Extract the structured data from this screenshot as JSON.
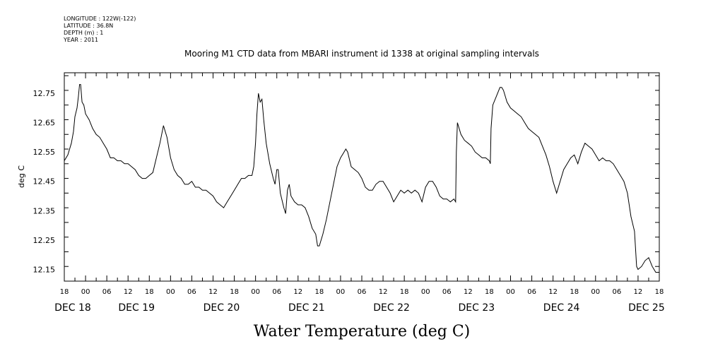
{
  "header_info": {
    "longitude": "LONGITUDE : 122W(-122)",
    "latitude": "LATITUDE : 36.8N",
    "depth": "DEPTH (m) : 1",
    "year": "YEAR : 2011"
  },
  "chart_data": {
    "type": "line",
    "title": "Mooring M1 CTD data from MBARI instrument id 1338 at original sampling intervals",
    "xlabel": "Water Temperature (deg C)",
    "ylabel": "deg C",
    "xlim_hours": [
      0,
      168
    ],
    "ylim": [
      12.11,
      12.82
    ],
    "yticks": [
      12.15,
      12.25,
      12.35,
      12.45,
      12.55,
      12.65,
      12.75
    ],
    "ytick_labels": [
      "12.15",
      "12.25",
      "12.35",
      "12.45",
      "12.55",
      "12.65",
      "12.75"
    ],
    "hour_labels": [
      "18",
      "00",
      "06",
      "12",
      "18",
      "00",
      "06",
      "12",
      "18",
      "00",
      "06",
      "12",
      "18",
      "00",
      "06",
      "12",
      "18",
      "00",
      "06",
      "12",
      "18",
      "00",
      "06",
      "12",
      "18",
      "00",
      "06",
      "12",
      "18"
    ],
    "date_labels": [
      {
        "label": "DEC 18",
        "hour": 0
      },
      {
        "label": "DEC 19",
        "hour": 18
      },
      {
        "label": "DEC 20",
        "hour": 42
      },
      {
        "label": "DEC 21",
        "hour": 66
      },
      {
        "label": "DEC 22",
        "hour": 90
      },
      {
        "label": "DEC 23",
        "hour": 114
      },
      {
        "label": "DEC 24",
        "hour": 138
      },
      {
        "label": "DEC 25",
        "hour": 162
      }
    ],
    "grid": false,
    "series": [
      {
        "color": "#000000",
        "points": [
          [
            0,
            12.52
          ],
          [
            1,
            12.54
          ],
          [
            2,
            12.58
          ],
          [
            2.6,
            12.62
          ],
          [
            3,
            12.67
          ],
          [
            3.6,
            12.7
          ],
          [
            4,
            12.74
          ],
          [
            4.3,
            12.78
          ],
          [
            4.6,
            12.78
          ],
          [
            5,
            12.72
          ],
          [
            5.5,
            12.71
          ],
          [
            6,
            12.68
          ],
          [
            7,
            12.66
          ],
          [
            8,
            12.63
          ],
          [
            9,
            12.61
          ],
          [
            10,
            12.6
          ],
          [
            11,
            12.58
          ],
          [
            12,
            12.56
          ],
          [
            13,
            12.53
          ],
          [
            14,
            12.53
          ],
          [
            15,
            12.52
          ],
          [
            16,
            12.52
          ],
          [
            17,
            12.51
          ],
          [
            18,
            12.51
          ],
          [
            19,
            12.5
          ],
          [
            20,
            12.49
          ],
          [
            21,
            12.47
          ],
          [
            22,
            12.46
          ],
          [
            23,
            12.46
          ],
          [
            24,
            12.47
          ],
          [
            25,
            12.48
          ],
          [
            26,
            12.53
          ],
          [
            27,
            12.58
          ],
          [
            28,
            12.64
          ],
          [
            29,
            12.6
          ],
          [
            30,
            12.53
          ],
          [
            31,
            12.49
          ],
          [
            32,
            12.47
          ],
          [
            33,
            12.46
          ],
          [
            34,
            12.44
          ],
          [
            35,
            12.44
          ],
          [
            36,
            12.45
          ],
          [
            37,
            12.43
          ],
          [
            38,
            12.43
          ],
          [
            39,
            12.42
          ],
          [
            40,
            12.42
          ],
          [
            41,
            12.41
          ],
          [
            42,
            12.4
          ],
          [
            43,
            12.38
          ],
          [
            44,
            12.37
          ],
          [
            45,
            12.36
          ],
          [
            46,
            12.38
          ],
          [
            47,
            12.4
          ],
          [
            48,
            12.42
          ],
          [
            49,
            12.44
          ],
          [
            50,
            12.46
          ],
          [
            51,
            12.46
          ],
          [
            52,
            12.47
          ],
          [
            53,
            12.47
          ],
          [
            53.5,
            12.5
          ],
          [
            54,
            12.58
          ],
          [
            54.4,
            12.68
          ],
          [
            54.8,
            12.75
          ],
          [
            55.3,
            12.72
          ],
          [
            55.8,
            12.73
          ],
          [
            56.3,
            12.66
          ],
          [
            57,
            12.58
          ],
          [
            58,
            12.51
          ],
          [
            59,
            12.46
          ],
          [
            59.5,
            12.44
          ],
          [
            60,
            12.49
          ],
          [
            60.4,
            12.49
          ],
          [
            61,
            12.41
          ],
          [
            62,
            12.36
          ],
          [
            62.5,
            12.34
          ],
          [
            63,
            12.42
          ],
          [
            63.5,
            12.44
          ],
          [
            64,
            12.4
          ],
          [
            65,
            12.38
          ],
          [
            66,
            12.37
          ],
          [
            67,
            12.37
          ],
          [
            68,
            12.36
          ],
          [
            69,
            12.33
          ],
          [
            70,
            12.29
          ],
          [
            71,
            12.27
          ],
          [
            71.5,
            12.23
          ],
          [
            72,
            12.23
          ],
          [
            73,
            12.27
          ],
          [
            74,
            12.32
          ],
          [
            75,
            12.38
          ],
          [
            76,
            12.44
          ],
          [
            77,
            12.5
          ],
          [
            78,
            12.53
          ],
          [
            79,
            12.55
          ],
          [
            79.5,
            12.56
          ],
          [
            80,
            12.55
          ],
          [
            81,
            12.5
          ],
          [
            82,
            12.49
          ],
          [
            83,
            12.48
          ],
          [
            84,
            12.46
          ],
          [
            85,
            12.43
          ],
          [
            86,
            12.42
          ],
          [
            87,
            12.42
          ],
          [
            88,
            12.44
          ],
          [
            89,
            12.45
          ],
          [
            90,
            12.45
          ],
          [
            91,
            12.43
          ],
          [
            92,
            12.41
          ],
          [
            93,
            12.38
          ],
          [
            94,
            12.4
          ],
          [
            95,
            12.42
          ],
          [
            96,
            12.41
          ],
          [
            97,
            12.42
          ],
          [
            98,
            12.41
          ],
          [
            99,
            12.42
          ],
          [
            100,
            12.41
          ],
          [
            101,
            12.38
          ],
          [
            102,
            12.43
          ],
          [
            103,
            12.45
          ],
          [
            104,
            12.45
          ],
          [
            105,
            12.43
          ],
          [
            106,
            12.4
          ],
          [
            107,
            12.39
          ],
          [
            108,
            12.39
          ],
          [
            109,
            12.38
          ],
          [
            110,
            12.39
          ],
          [
            110.5,
            12.38
          ],
          [
            110.7,
            12.55
          ],
          [
            111,
            12.65
          ],
          [
            112,
            12.61
          ],
          [
            113,
            12.59
          ],
          [
            114,
            12.58
          ],
          [
            115,
            12.57
          ],
          [
            116,
            12.55
          ],
          [
            117,
            12.54
          ],
          [
            118,
            12.53
          ],
          [
            119,
            12.53
          ],
          [
            120,
            12.52
          ],
          [
            120.3,
            12.51
          ],
          [
            120.5,
            12.63
          ],
          [
            121,
            12.71
          ],
          [
            122,
            12.74
          ],
          [
            123,
            12.77
          ],
          [
            123.5,
            12.77
          ],
          [
            124,
            12.76
          ],
          [
            125,
            12.72
          ],
          [
            126,
            12.7
          ],
          [
            127,
            12.69
          ],
          [
            128,
            12.68
          ],
          [
            129,
            12.67
          ],
          [
            130,
            12.65
          ],
          [
            131,
            12.63
          ],
          [
            132,
            12.62
          ],
          [
            133,
            12.61
          ],
          [
            134,
            12.6
          ],
          [
            135,
            12.57
          ],
          [
            136,
            12.54
          ],
          [
            137,
            12.5
          ],
          [
            138,
            12.45
          ],
          [
            139,
            12.41
          ],
          [
            140,
            12.45
          ],
          [
            141,
            12.49
          ],
          [
            142,
            12.51
          ],
          [
            143,
            12.53
          ],
          [
            144,
            12.54
          ],
          [
            145,
            12.51
          ],
          [
            146,
            12.55
          ],
          [
            147,
            12.58
          ],
          [
            148,
            12.57
          ],
          [
            149,
            12.56
          ],
          [
            150,
            12.54
          ],
          [
            151,
            12.52
          ],
          [
            152,
            12.53
          ],
          [
            153,
            12.52
          ],
          [
            154,
            12.52
          ],
          [
            155,
            12.51
          ],
          [
            156,
            12.49
          ],
          [
            157,
            12.47
          ],
          [
            158,
            12.45
          ],
          [
            159,
            12.41
          ],
          [
            160,
            12.33
          ],
          [
            161,
            12.28
          ],
          [
            161.6,
            12.16
          ],
          [
            162,
            12.15
          ],
          [
            163,
            12.16
          ],
          [
            164,
            12.18
          ],
          [
            165,
            12.19
          ],
          [
            166,
            12.16
          ],
          [
            167,
            12.14
          ],
          [
            168,
            12.14
          ]
        ]
      }
    ]
  }
}
